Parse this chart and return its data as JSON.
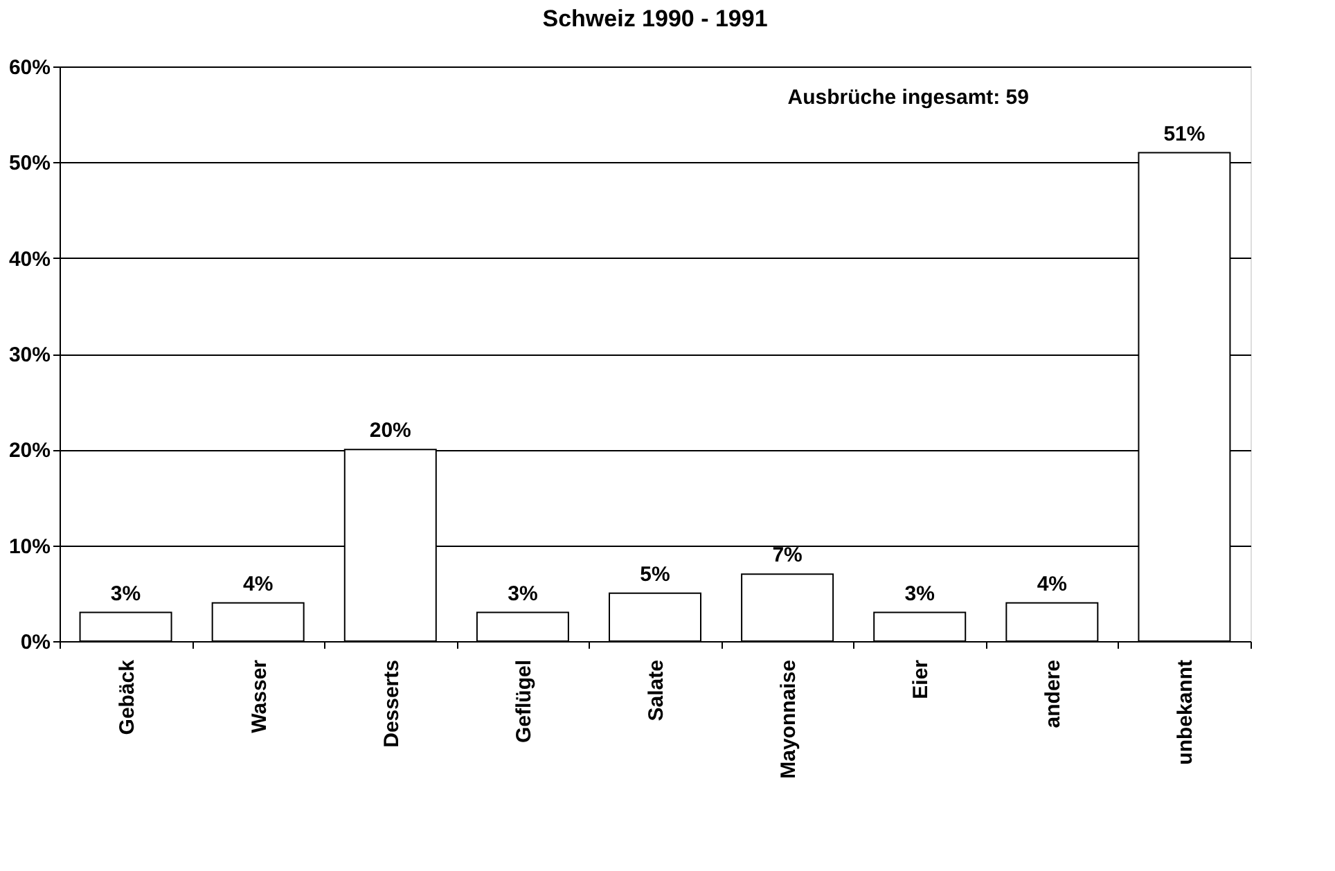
{
  "chart_data": {
    "type": "bar",
    "title": "Schweiz 1990 - 1991",
    "categories": [
      "Gebäck",
      "Wasser",
      "Desserts",
      "Geflügel",
      "Salate",
      "Mayonnaise",
      "Eier",
      "andere",
      "unbekannt"
    ],
    "values": [
      3,
      4,
      20,
      3,
      5,
      7,
      3,
      4,
      51
    ],
    "value_labels": [
      "3%",
      "4%",
      "20%",
      "3%",
      "5%",
      "7%",
      "3%",
      "4%",
      "51%"
    ],
    "color": "#ffffff",
    "ylim": [
      0,
      60
    ],
    "yticks": [
      {
        "value": 0,
        "label": "0%"
      },
      {
        "value": 10,
        "label": "10%"
      },
      {
        "value": 20,
        "label": "20%"
      },
      {
        "value": 30,
        "label": "30%"
      },
      {
        "value": 40,
        "label": "40%"
      },
      {
        "value": 50,
        "label": "50%"
      },
      {
        "value": 60,
        "label": "60%"
      }
    ],
    "grid": "y",
    "annotations": [
      "Ausbrüche ingesamt: 59"
    ]
  }
}
